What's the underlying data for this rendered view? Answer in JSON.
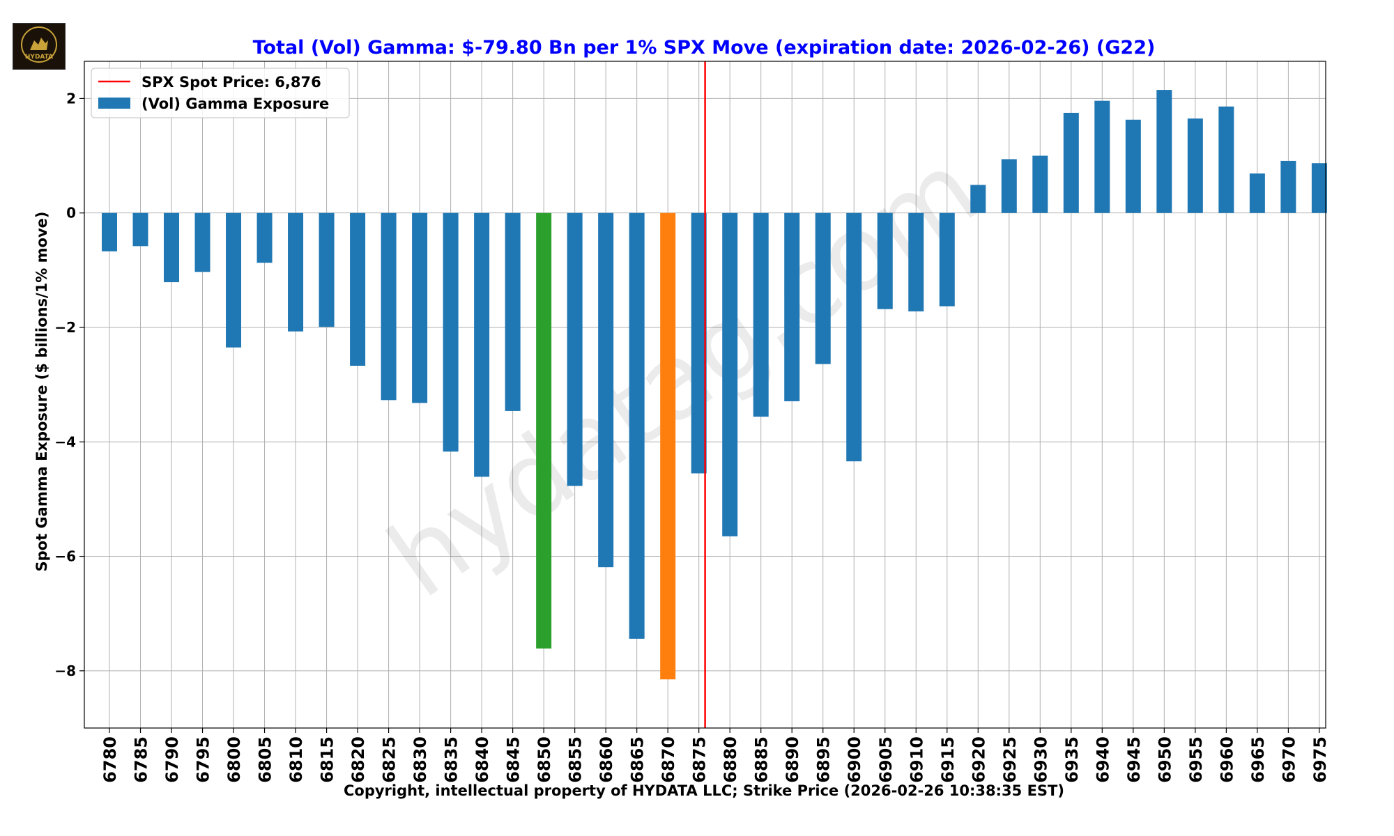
{
  "logo": {
    "text": "HYDATA"
  },
  "watermark": "hydatag.com",
  "chart_data": {
    "type": "bar",
    "title": "Total (Vol) Gamma: $-79.80 Bn per 1% SPX Move (expiration date: 2026-02-26) (G22)",
    "xlabel": "Copyright, intellectual property of HYDATA LLC; Strike Price (2026-02-26 10:38:35 EST)",
    "ylabel": "Spot Gamma Exposure ($ billions/1% move)",
    "ylim": [
      -9.0,
      2.65
    ],
    "yticks": [
      2,
      0,
      -2,
      -4,
      -6,
      -8
    ],
    "ytick_labels": [
      "2",
      "0",
      "−2",
      "−4",
      "−6",
      "−8"
    ],
    "grid": true,
    "legend_position": "top-left",
    "legend": {
      "spot_label": "SPX Spot Price: 6,876",
      "series_label": "(Vol) Gamma Exposure"
    },
    "spot_price": 6876,
    "spot_color": "#ff0000",
    "title_color": "#0000ff",
    "bar_color": "#1f77b4",
    "highlight_colors": {
      "6850": "#2ca02c",
      "6870": "#ff7f0e"
    },
    "categories": [
      "6780",
      "6785",
      "6790",
      "6795",
      "6800",
      "6805",
      "6810",
      "6815",
      "6820",
      "6825",
      "6830",
      "6835",
      "6840",
      "6845",
      "6850",
      "6855",
      "6860",
      "6865",
      "6870",
      "6875",
      "6880",
      "6885",
      "6890",
      "6895",
      "6900",
      "6905",
      "6910",
      "6915",
      "6920",
      "6925",
      "6930",
      "6935",
      "6940",
      "6945",
      "6950",
      "6955",
      "6960",
      "6965",
      "6970",
      "6975"
    ],
    "values": [
      -0.67,
      -0.58,
      -1.21,
      -1.03,
      -2.35,
      -0.87,
      -2.07,
      -1.99,
      -2.67,
      -3.27,
      -3.32,
      -4.17,
      -4.61,
      -3.46,
      -7.61,
      -4.77,
      -6.19,
      -7.44,
      -8.15,
      -4.55,
      -5.65,
      -3.56,
      -3.29,
      -2.64,
      -4.34,
      -1.68,
      -1.72,
      -1.63,
      0.49,
      0.94,
      1.0,
      1.75,
      1.96,
      1.63,
      2.15,
      1.65,
      1.86,
      0.69,
      0.91,
      0.87
    ]
  }
}
